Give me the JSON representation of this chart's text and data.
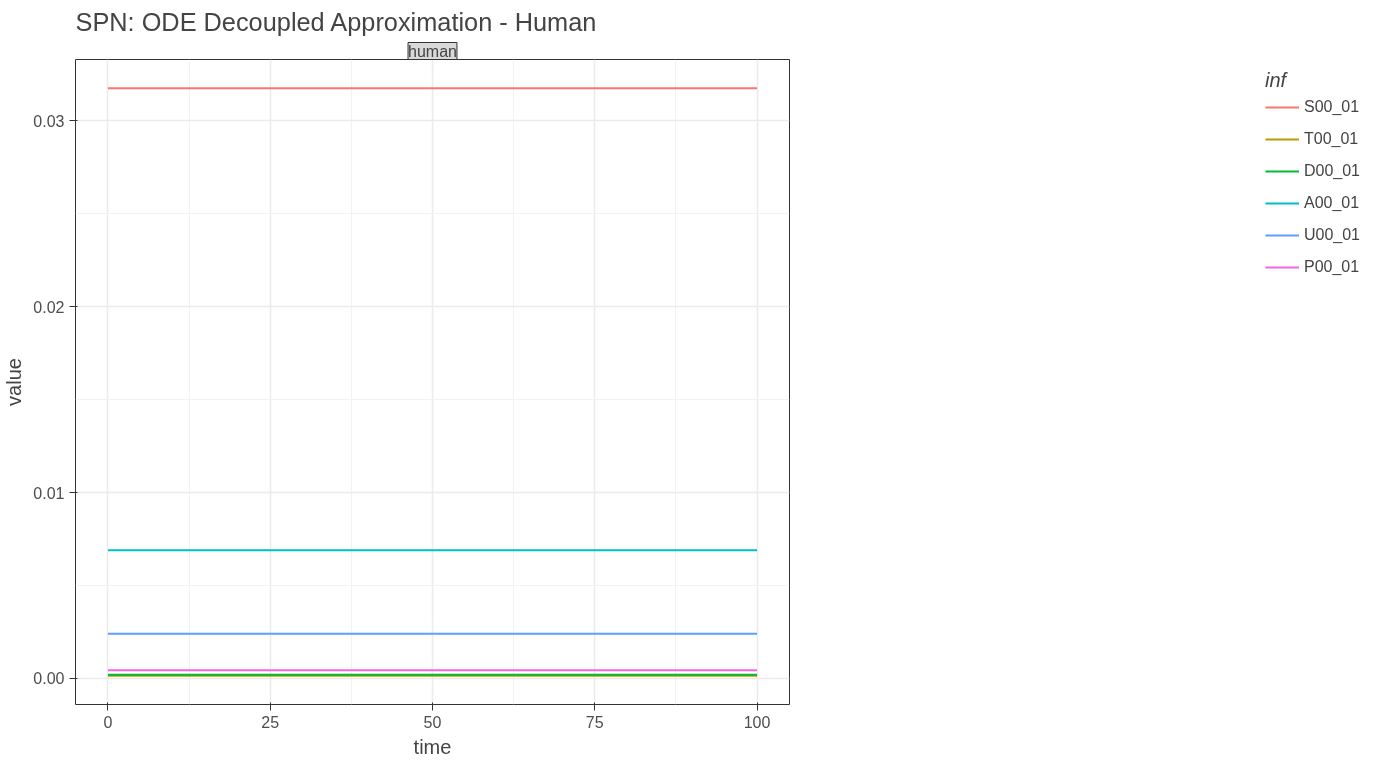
{
  "chart_data": {
    "type": "line",
    "title": "SPN: ODE Decoupled Approximation - Human",
    "subtitle": "human",
    "xlabel": "time",
    "ylabel": "value",
    "legend_title": "inf",
    "x": [
      0,
      100
    ],
    "series": [
      {
        "name": "S00_01",
        "color": "#f8766d",
        "values": [
          0.03175,
          0.03175
        ]
      },
      {
        "name": "T00_01",
        "color": "#b79f00",
        "values": [
          0.00015,
          0.00015
        ]
      },
      {
        "name": "D00_01",
        "color": "#00ba38",
        "values": [
          0.0002,
          0.0002
        ]
      },
      {
        "name": "A00_01",
        "color": "#00bfc4",
        "values": [
          0.0069,
          0.0069
        ]
      },
      {
        "name": "U00_01",
        "color": "#619cff",
        "values": [
          0.0024,
          0.0024
        ]
      },
      {
        "name": "P00_01",
        "color": "#f564e3",
        "values": [
          0.00044,
          0.00044
        ]
      }
    ],
    "xlim": [
      -5,
      105
    ],
    "ylim": [
      -0.0014,
      0.0333
    ],
    "xticks": [
      0,
      25,
      50,
      75,
      100
    ],
    "yticks": [
      {
        "value": 0,
        "label": "0.00"
      },
      {
        "value": 0.01,
        "label": "0.01"
      },
      {
        "value": 0.02,
        "label": "0.02"
      },
      {
        "value": 0.03,
        "label": "0.03"
      }
    ],
    "grid": true,
    "legend": "right",
    "line_style": "solid"
  }
}
